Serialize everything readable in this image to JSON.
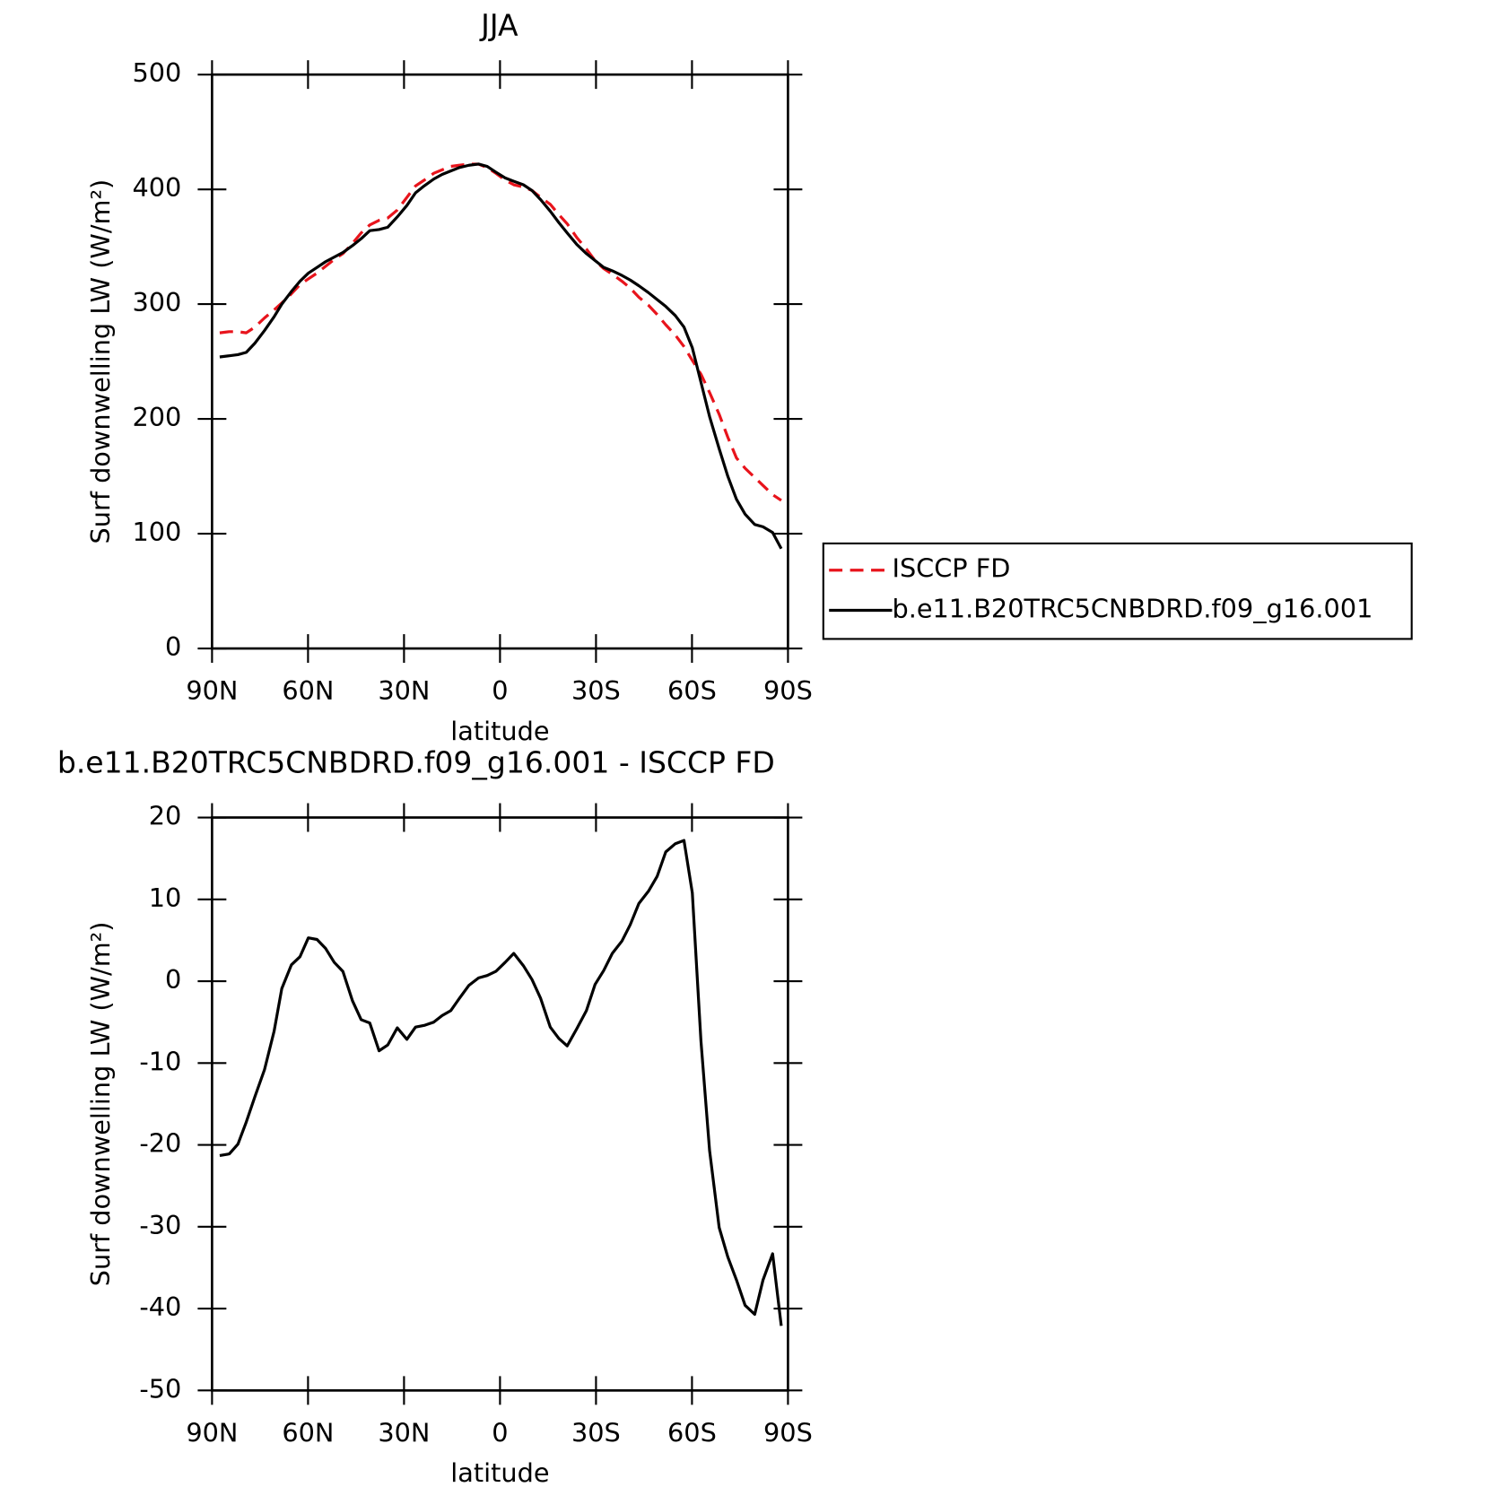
{
  "chart_data": [
    {
      "type": "line",
      "title": "JJA",
      "y_label": "Surf downwelling LW (W/m²)",
      "x_label": "latitude",
      "x": [
        87.6,
        84.6,
        81.9,
        79.3,
        76.6,
        73.6,
        70.6,
        68.2,
        65.2,
        62.5,
        59.9,
        57.2,
        54.5,
        51.8,
        49.1,
        46.1,
        43.4,
        40.7,
        37.8,
        35.1,
        32.1,
        29.1,
        26.4,
        23.7,
        20.7,
        18.1,
        15.4,
        12.7,
        9.7,
        6.7,
        4.0,
        1.3,
        -1.6,
        -4.3,
        -7.3,
        -10.0,
        -12.7,
        -15.7,
        -18.4,
        -21.0,
        -24.0,
        -27.0,
        -29.7,
        -32.4,
        -35.1,
        -38.1,
        -40.7,
        -43.4,
        -46.4,
        -49.1,
        -51.8,
        -54.8,
        -57.5,
        -60.1,
        -62.8,
        -65.5,
        -68.5,
        -71.2,
        -73.9,
        -76.6,
        -79.6,
        -82.2,
        -85.2,
        -87.9
      ],
      "series": [
        {
          "name": "ISCCP FD",
          "color": "#e8141c",
          "dash": true,
          "values": [
            275,
            276,
            276,
            275,
            280,
            288,
            295,
            301,
            309,
            317,
            322,
            327,
            333,
            339,
            344,
            353,
            362,
            369,
            373,
            375,
            382,
            393,
            403,
            408,
            414,
            417,
            420,
            421,
            422,
            422,
            419,
            414,
            408,
            404,
            402,
            399,
            393,
            387,
            378,
            370,
            358,
            348,
            338,
            331,
            326,
            320,
            314,
            306,
            299,
            291,
            282,
            273,
            263,
            251,
            239,
            223,
            204,
            184,
            166,
            157,
            149,
            142,
            134,
            129
          ]
        },
        {
          "name": "b.e11.B20TRC5CNBDRD.f09_g16.001",
          "color": "#000000",
          "dash": false,
          "values": [
            254,
            255,
            256,
            258,
            266,
            277,
            289,
            300,
            311,
            320,
            327,
            332,
            337,
            341,
            345,
            351,
            357,
            364,
            365,
            367,
            376,
            386,
            397,
            403,
            409,
            413,
            416,
            419,
            421,
            422,
            420,
            415,
            410,
            407,
            404,
            399,
            391,
            381,
            371,
            362,
            352,
            344,
            338,
            332,
            329,
            325,
            321,
            316,
            310,
            304,
            298,
            290,
            280,
            262,
            232,
            202,
            174,
            150,
            130,
            117,
            108,
            106,
            101,
            87
          ]
        }
      ],
      "xlim": [
        90,
        -90
      ],
      "xticks": [
        {
          "value": 90,
          "label": "90N"
        },
        {
          "value": 60,
          "label": "60N"
        },
        {
          "value": 30,
          "label": "30N"
        },
        0,
        {
          "value": -30,
          "label": "30S"
        },
        {
          "value": -60,
          "label": "60S"
        },
        {
          "value": -90,
          "label": "90S"
        }
      ],
      "ylim": [
        0,
        500
      ],
      "yticks": [
        0,
        100,
        200,
        300,
        400,
        500
      ],
      "legend": "outside-right"
    },
    {
      "type": "line",
      "title": "b.e11.B20TRC5CNBDRD.f09_g16.001 - ISCCP FD",
      "y_label": "Surf downwelling LW (W/m²)",
      "x_label": "latitude",
      "x": [
        87.6,
        84.6,
        81.9,
        79.3,
        76.6,
        73.6,
        70.6,
        68.2,
        65.2,
        62.5,
        59.9,
        57.2,
        54.5,
        51.8,
        49.1,
        46.1,
        43.4,
        40.7,
        37.8,
        35.1,
        32.1,
        29.1,
        26.4,
        23.7,
        20.7,
        18.1,
        15.4,
        12.7,
        9.7,
        6.7,
        4.0,
        1.3,
        -1.6,
        -4.3,
        -7.3,
        -10.0,
        -12.7,
        -15.7,
        -18.4,
        -21.0,
        -24.0,
        -27.0,
        -29.7,
        -32.4,
        -35.1,
        -38.1,
        -40.7,
        -43.4,
        -46.4,
        -49.1,
        -51.8,
        -54.8,
        -57.5,
        -60.1,
        -62.8,
        -65.5,
        -68.5,
        -71.2,
        -73.9,
        -76.6,
        -79.6,
        -82.2,
        -85.2,
        -87.9
      ],
      "series": [
        {
          "color": "#000000",
          "dash": false,
          "values": [
            -21.3,
            -21.1,
            -19.9,
            -17.2,
            -14.1,
            -10.8,
            -6.1,
            -0.9,
            2.0,
            3.0,
            5.3,
            5.1,
            4.0,
            2.3,
            1.2,
            -2.4,
            -4.7,
            -5.1,
            -8.5,
            -7.8,
            -5.7,
            -7.1,
            -5.6,
            -5.4,
            -5.0,
            -4.2,
            -3.6,
            -2.1,
            -0.5,
            0.4,
            0.7,
            1.2,
            2.3,
            3.4,
            1.9,
            0.2,
            -2.1,
            -5.6,
            -7.0,
            -7.9,
            -5.8,
            -3.6,
            -0.4,
            1.3,
            3.4,
            4.9,
            6.9,
            9.5,
            11.0,
            12.8,
            15.8,
            16.8,
            17.2,
            10.8,
            -7.3,
            -20.7,
            -30.1,
            -33.7,
            -36.5,
            -39.6,
            -40.7,
            -36.5,
            -33.3,
            -42.1
          ]
        }
      ],
      "xlim": [
        90,
        -90
      ],
      "xticks": [
        {
          "value": 90,
          "label": "90N"
        },
        {
          "value": 60,
          "label": "60N"
        },
        {
          "value": 30,
          "label": "30N"
        },
        0,
        {
          "value": -30,
          "label": "30S"
        },
        {
          "value": -60,
          "label": "60S"
        },
        {
          "value": -90,
          "label": "90S"
        }
      ],
      "ylim": [
        -50,
        20
      ],
      "yticks": [
        -50,
        -40,
        -30,
        -20,
        -10,
        0,
        10,
        20
      ]
    }
  ]
}
